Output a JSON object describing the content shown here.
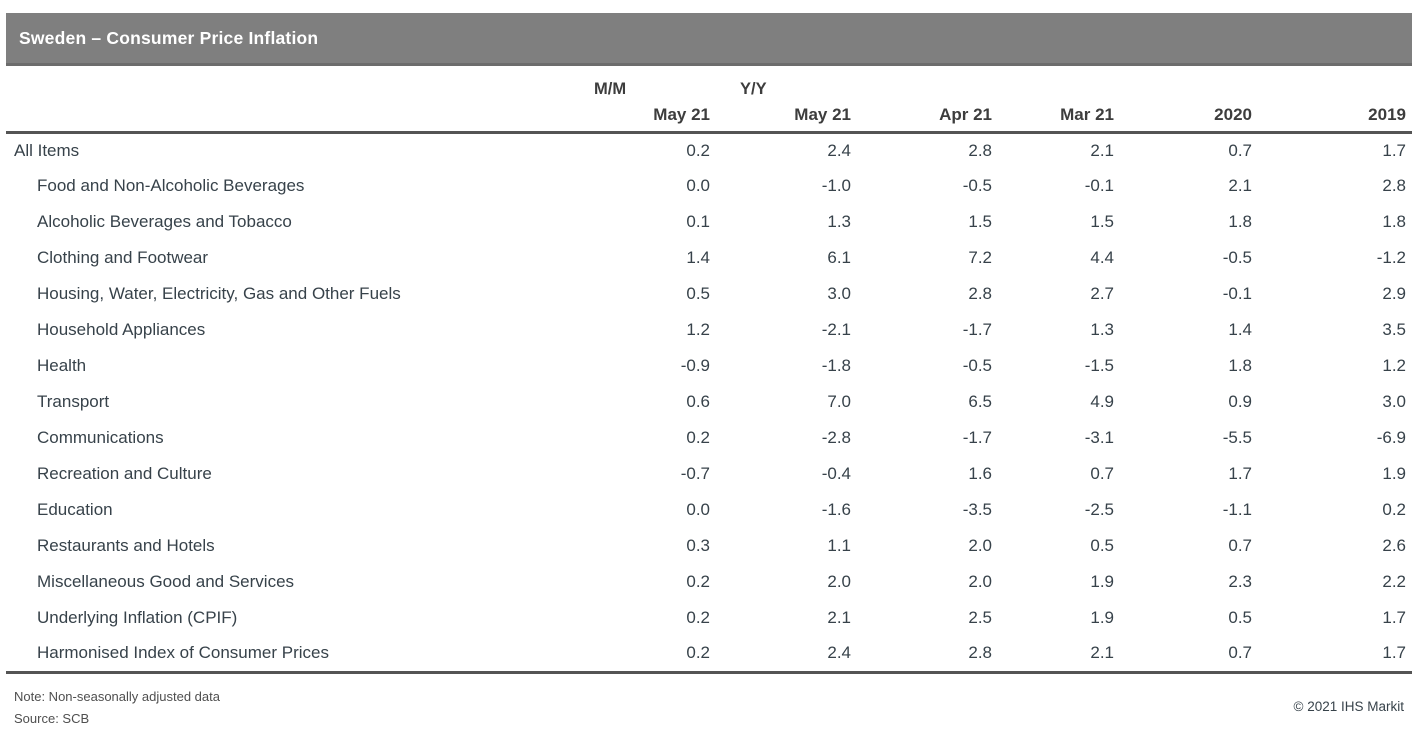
{
  "title_bar": {
    "title": "Sweden – Consumer Price Inflation"
  },
  "colors": {
    "title_bar_bg": "#7f7f7f",
    "title_text": "#ffffff",
    "table_border": "#545454",
    "body_text": "#37424a"
  },
  "table": {
    "group_headers": {
      "mm": "M/M",
      "yy": "Y/Y"
    },
    "columns": [
      "May 21",
      "May 21",
      "Apr 21",
      "Mar 21",
      "2020",
      "2019"
    ],
    "rows": [
      {
        "label": "All Items",
        "indent": false,
        "values": [
          "0.2",
          "2.4",
          "2.8",
          "2.1",
          "0.7",
          "1.7"
        ]
      },
      {
        "label": "Food and Non-Alcoholic Beverages",
        "indent": true,
        "values": [
          "0.0",
          "-1.0",
          "-0.5",
          "-0.1",
          "2.1",
          "2.8"
        ]
      },
      {
        "label": "Alcoholic Beverages and Tobacco",
        "indent": true,
        "values": [
          "0.1",
          "1.3",
          "1.5",
          "1.5",
          "1.8",
          "1.8"
        ]
      },
      {
        "label": "Clothing and Footwear",
        "indent": true,
        "values": [
          "1.4",
          "6.1",
          "7.2",
          "4.4",
          "-0.5",
          "-1.2"
        ]
      },
      {
        "label": "Housing, Water, Electricity, Gas and Other Fuels",
        "indent": true,
        "values": [
          "0.5",
          "3.0",
          "2.8",
          "2.7",
          "-0.1",
          "2.9"
        ]
      },
      {
        "label": "Household Appliances",
        "indent": true,
        "values": [
          "1.2",
          "-2.1",
          "-1.7",
          "1.3",
          "1.4",
          "3.5"
        ]
      },
      {
        "label": "Health",
        "indent": true,
        "values": [
          "-0.9",
          "-1.8",
          "-0.5",
          "-1.5",
          "1.8",
          "1.2"
        ]
      },
      {
        "label": "Transport",
        "indent": true,
        "values": [
          "0.6",
          "7.0",
          "6.5",
          "4.9",
          "0.9",
          "3.0"
        ]
      },
      {
        "label": "Communications",
        "indent": true,
        "values": [
          "0.2",
          "-2.8",
          "-1.7",
          "-3.1",
          "-5.5",
          "-6.9"
        ]
      },
      {
        "label": "Recreation and Culture",
        "indent": true,
        "values": [
          "-0.7",
          "-0.4",
          "1.6",
          "0.7",
          "1.7",
          "1.9"
        ]
      },
      {
        "label": "Education",
        "indent": true,
        "values": [
          "0.0",
          "-1.6",
          "-3.5",
          "-2.5",
          "-1.1",
          "0.2"
        ]
      },
      {
        "label": "Restaurants and Hotels",
        "indent": true,
        "values": [
          "0.3",
          "1.1",
          "2.0",
          "0.5",
          "0.7",
          "2.6"
        ]
      },
      {
        "label": "Miscellaneous Good and Services",
        "indent": true,
        "values": [
          "0.2",
          "2.0",
          "2.0",
          "1.9",
          "2.3",
          "2.2"
        ]
      },
      {
        "label": "Underlying Inflation (CPIF)",
        "indent": true,
        "values": [
          "0.2",
          "2.1",
          "2.5",
          "1.9",
          "0.5",
          "1.7"
        ]
      },
      {
        "label": "Harmonised Index of Consumer Prices",
        "indent": true,
        "values": [
          "0.2",
          "2.4",
          "2.8",
          "2.1",
          "0.7",
          "1.7"
        ]
      }
    ]
  },
  "footer": {
    "note": "Note: Non-seasonally adjusted data",
    "source": "Source: SCB",
    "copyright": "© 2021 IHS Markit"
  },
  "chart_data": {
    "type": "table",
    "title": "Sweden – Consumer Price Inflation",
    "column_groups": [
      "M/M",
      "Y/Y"
    ],
    "columns": [
      "M/M May 21",
      "Y/Y May 21",
      "Apr 21",
      "Mar 21",
      "2020",
      "2019"
    ],
    "rows": [
      {
        "label": "All Items",
        "values": [
          0.2,
          2.4,
          2.8,
          2.1,
          0.7,
          1.7
        ]
      },
      {
        "label": "Food and Non-Alcoholic Beverages",
        "values": [
          0.0,
          -1.0,
          -0.5,
          -0.1,
          2.1,
          2.8
        ]
      },
      {
        "label": "Alcoholic Beverages and Tobacco",
        "values": [
          0.1,
          1.3,
          1.5,
          1.5,
          1.8,
          1.8
        ]
      },
      {
        "label": "Clothing and Footwear",
        "values": [
          1.4,
          6.1,
          7.2,
          4.4,
          -0.5,
          -1.2
        ]
      },
      {
        "label": "Housing, Water, Electricity, Gas and Other Fuels",
        "values": [
          0.5,
          3.0,
          2.8,
          2.7,
          -0.1,
          2.9
        ]
      },
      {
        "label": "Household Appliances",
        "values": [
          1.2,
          -2.1,
          -1.7,
          1.3,
          1.4,
          3.5
        ]
      },
      {
        "label": "Health",
        "values": [
          -0.9,
          -1.8,
          -0.5,
          -1.5,
          1.8,
          1.2
        ]
      },
      {
        "label": "Transport",
        "values": [
          0.6,
          7.0,
          6.5,
          4.9,
          0.9,
          3.0
        ]
      },
      {
        "label": "Communications",
        "values": [
          0.2,
          -2.8,
          -1.7,
          -3.1,
          -5.5,
          -6.9
        ]
      },
      {
        "label": "Recreation and Culture",
        "values": [
          -0.7,
          -0.4,
          1.6,
          0.7,
          1.7,
          1.9
        ]
      },
      {
        "label": "Education",
        "values": [
          0.0,
          -1.6,
          -3.5,
          -2.5,
          -1.1,
          0.2
        ]
      },
      {
        "label": "Restaurants and Hotels",
        "values": [
          0.3,
          1.1,
          2.0,
          0.5,
          0.7,
          2.6
        ]
      },
      {
        "label": "Miscellaneous Good and Services",
        "values": [
          0.2,
          2.0,
          2.0,
          1.9,
          2.3,
          2.2
        ]
      },
      {
        "label": "Underlying Inflation (CPIF)",
        "values": [
          0.2,
          2.1,
          2.5,
          1.9,
          0.5,
          1.7
        ]
      },
      {
        "label": "Harmonised Index of Consumer Prices",
        "values": [
          0.2,
          2.4,
          2.8,
          2.1,
          0.7,
          1.7
        ]
      }
    ],
    "note": "Note: Non-seasonally adjusted data",
    "source": "Source: SCB"
  }
}
